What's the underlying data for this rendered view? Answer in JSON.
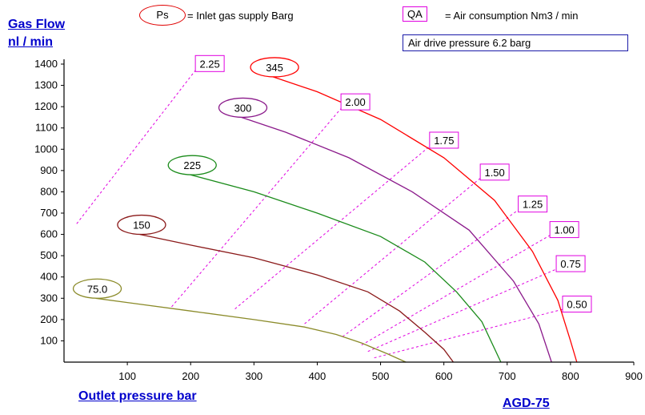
{
  "header": {
    "ylabel_line1": "Gas Flow",
    "ylabel_line2": "nl / min",
    "ps_symbol": "Ps",
    "ps_desc": "= Inlet gas supply  Barg",
    "qa_symbol": "QA",
    "qa_desc": "= Air consumption  Nm3 / min",
    "air_drive": "Air drive pressure  6.2 barg"
  },
  "footer": {
    "xlabel": "Outlet pressure    bar",
    "model": "AGD-75"
  },
  "chart_data": {
    "type": "line",
    "xlim": [
      0,
      900
    ],
    "ylim": [
      0,
      1400
    ],
    "x_ticks": [
      "100",
      "200",
      "300",
      "400",
      "500",
      "600",
      "700",
      "800",
      "900"
    ],
    "y_ticks": [
      "100",
      "200",
      "300",
      "400",
      "500",
      "600",
      "700",
      "800",
      "900",
      "1000",
      "1100",
      "1200",
      "1300",
      "1400"
    ],
    "series": [
      {
        "name": "75.0",
        "color": "#8b8b2a",
        "points": [
          [
            50,
            300
          ],
          [
            100,
            280
          ],
          [
            200,
            240
          ],
          [
            300,
            200
          ],
          [
            380,
            165
          ],
          [
            430,
            130
          ],
          [
            470,
            90
          ],
          [
            510,
            40
          ],
          [
            540,
            0
          ]
        ]
      },
      {
        "name": "150",
        "color": "#8b1a1a",
        "points": [
          [
            120,
            600
          ],
          [
            200,
            550
          ],
          [
            300,
            490
          ],
          [
            400,
            410
          ],
          [
            480,
            330
          ],
          [
            530,
            240
          ],
          [
            570,
            140
          ],
          [
            600,
            60
          ],
          [
            615,
            0
          ]
        ]
      },
      {
        "name": "225",
        "color": "#1a8b1a",
        "points": [
          [
            200,
            880
          ],
          [
            300,
            800
          ],
          [
            400,
            700
          ],
          [
            500,
            590
          ],
          [
            570,
            470
          ],
          [
            620,
            330
          ],
          [
            660,
            190
          ],
          [
            690,
            0
          ]
        ]
      },
      {
        "name": "300",
        "color": "#8b1a8b",
        "points": [
          [
            280,
            1150
          ],
          [
            350,
            1080
          ],
          [
            450,
            960
          ],
          [
            550,
            800
          ],
          [
            640,
            620
          ],
          [
            710,
            380
          ],
          [
            750,
            180
          ],
          [
            770,
            0
          ]
        ]
      },
      {
        "name": "345",
        "color": "#ff0000",
        "points": [
          [
            330,
            1340
          ],
          [
            400,
            1270
          ],
          [
            500,
            1140
          ],
          [
            600,
            960
          ],
          [
            680,
            760
          ],
          [
            740,
            520
          ],
          [
            780,
            290
          ],
          [
            800,
            100
          ],
          [
            810,
            0
          ]
        ]
      }
    ],
    "air_lines": [
      {
        "label": "2.25",
        "points": [
          [
            20,
            650
          ],
          [
            210,
            1380
          ]
        ]
      },
      {
        "label": "2.00",
        "points": [
          [
            170,
            260
          ],
          [
            440,
            1200
          ]
        ]
      },
      {
        "label": "1.75",
        "points": [
          [
            270,
            250
          ],
          [
            580,
            1020
          ]
        ]
      },
      {
        "label": "1.50",
        "points": [
          [
            380,
            180
          ],
          [
            660,
            870
          ]
        ]
      },
      {
        "label": "1.25",
        "points": [
          [
            440,
            120
          ],
          [
            720,
            720
          ]
        ]
      },
      {
        "label": "1.00",
        "points": [
          [
            470,
            80
          ],
          [
            770,
            600
          ]
        ]
      },
      {
        "label": "0.75",
        "points": [
          [
            480,
            50
          ],
          [
            780,
            440
          ]
        ]
      },
      {
        "label": "0.50",
        "points": [
          [
            490,
            20
          ],
          [
            790,
            250
          ]
        ]
      }
    ]
  }
}
